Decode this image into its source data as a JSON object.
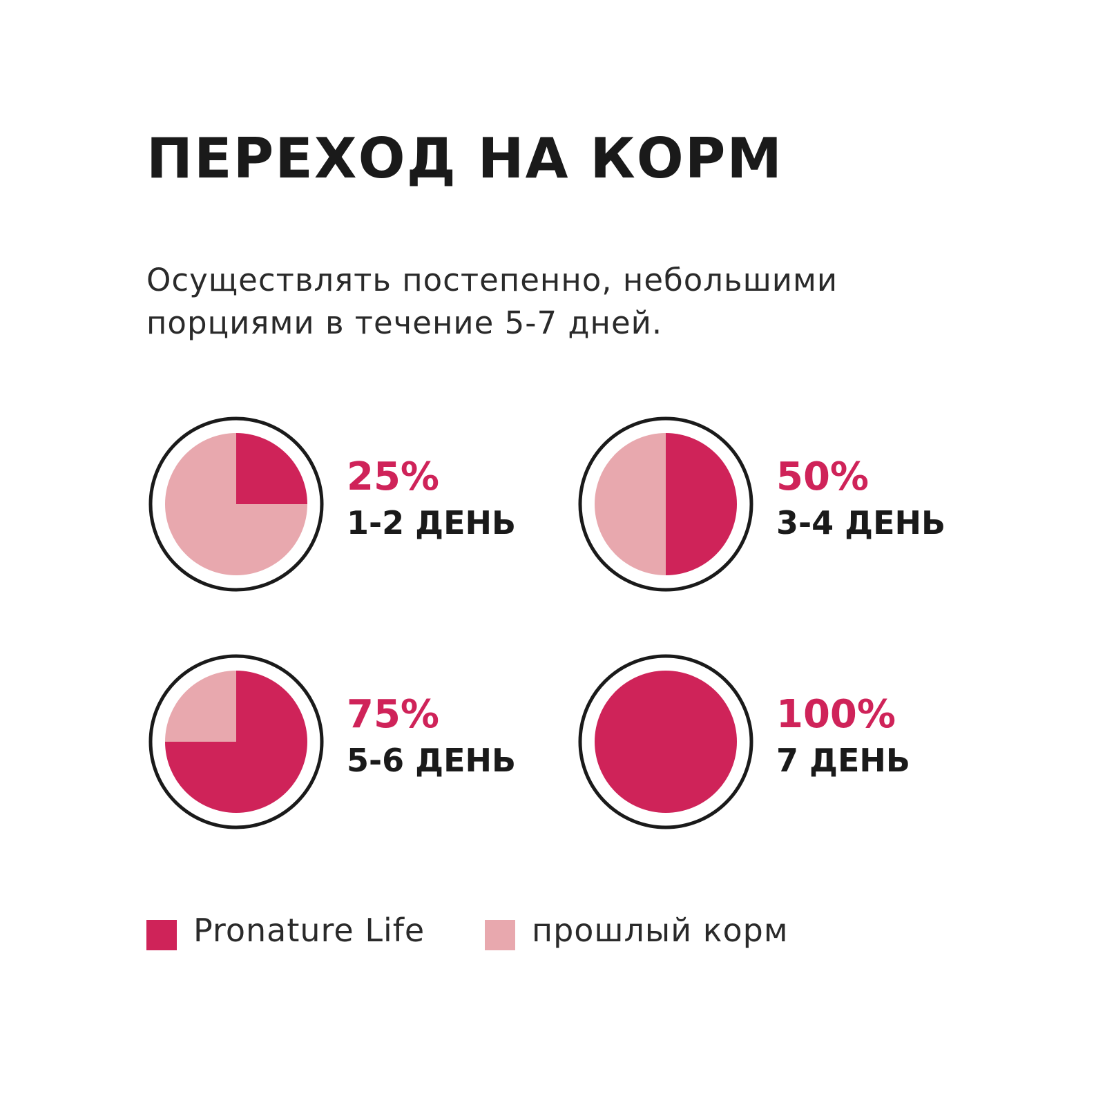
{
  "title": "ПЕРЕХОД НА КОРМ",
  "subtitle": "Осуществлять постепенно, небольшими порциями в течение 5-7 дней.",
  "colors": {
    "new_food": "#cf2359",
    "old_food": "#e8a8ae",
    "ring": "#1a1a1a"
  },
  "chart_data": {
    "type": "pie",
    "charts": [
      {
        "percent_label": "25%",
        "day_label": "1-2 ДЕНЬ",
        "slices": [
          {
            "series": "Pronature Life",
            "value": 25
          },
          {
            "series": "прошлый корм",
            "value": 75
          }
        ]
      },
      {
        "percent_label": "50%",
        "day_label": "3-4 ДЕНЬ",
        "slices": [
          {
            "series": "Pronature Life",
            "value": 50
          },
          {
            "series": "прошлый корм",
            "value": 50
          }
        ]
      },
      {
        "percent_label": "75%",
        "day_label": "5-6 ДЕНЬ",
        "slices": [
          {
            "series": "Pronature Life",
            "value": 75
          },
          {
            "series": "прошлый корм",
            "value": 25
          }
        ]
      },
      {
        "percent_label": "100%",
        "day_label": "7 ДЕНЬ",
        "slices": [
          {
            "series": "Pronature Life",
            "value": 100
          },
          {
            "series": "прошлый корм",
            "value": 0
          }
        ]
      }
    ],
    "legend": [
      {
        "label": "Pronature Life",
        "color": "#cf2359"
      },
      {
        "label": "прошлый корм",
        "color": "#e8a8ae"
      }
    ],
    "legend_position": "bottom"
  }
}
